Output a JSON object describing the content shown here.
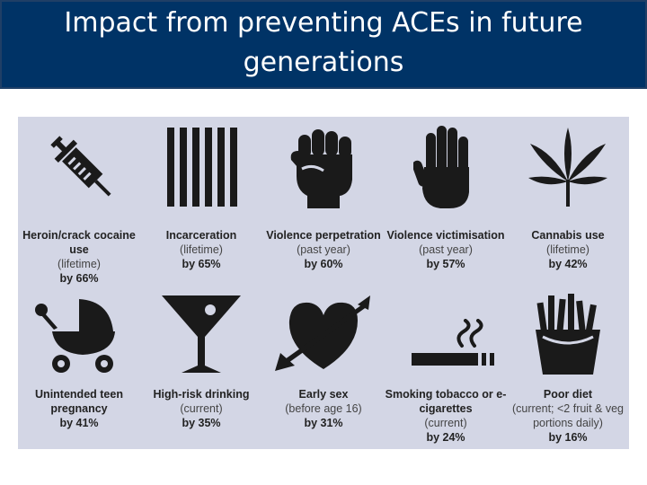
{
  "title": "Impact from preventing ACEs in future generations",
  "items": [
    {
      "icon": "syringe-icon",
      "name": "Heroin/crack cocaine use",
      "qual": "(lifetime)",
      "pct": "by 66%"
    },
    {
      "icon": "prison-bars-icon",
      "name": "Incarceration",
      "qual": "(lifetime)",
      "pct": "by 65%"
    },
    {
      "icon": "fist-icon",
      "name": "Violence perpetration",
      "qual": "(past year)",
      "pct": "by 60%"
    },
    {
      "icon": "raised-hand-icon",
      "name": "Violence victimisation",
      "qual": "(past year)",
      "pct": "by 57%"
    },
    {
      "icon": "cannabis-leaf-icon",
      "name": "Cannabis use",
      "qual": "(lifetime)",
      "pct": "by 42%"
    },
    {
      "icon": "pram-icon",
      "name": "Unintended teen pregnancy",
      "qual": "",
      "pct": "by 41%"
    },
    {
      "icon": "cocktail-glass-icon",
      "name": "High-risk drinking",
      "qual": "(current)",
      "pct": "by 35%"
    },
    {
      "icon": "heart-arrow-icon",
      "name": "Early sex",
      "qual": "(before age 16)",
      "pct": "by 31%"
    },
    {
      "icon": "cigarette-icon",
      "name": "Smoking tobacco or e-cigarettes",
      "qual": "(current)",
      "pct": "by 24%"
    },
    {
      "icon": "fries-icon",
      "name": "Poor diet",
      "qual": "(current; <2 fruit & veg portions daily)",
      "pct": "by 16%"
    }
  ]
}
